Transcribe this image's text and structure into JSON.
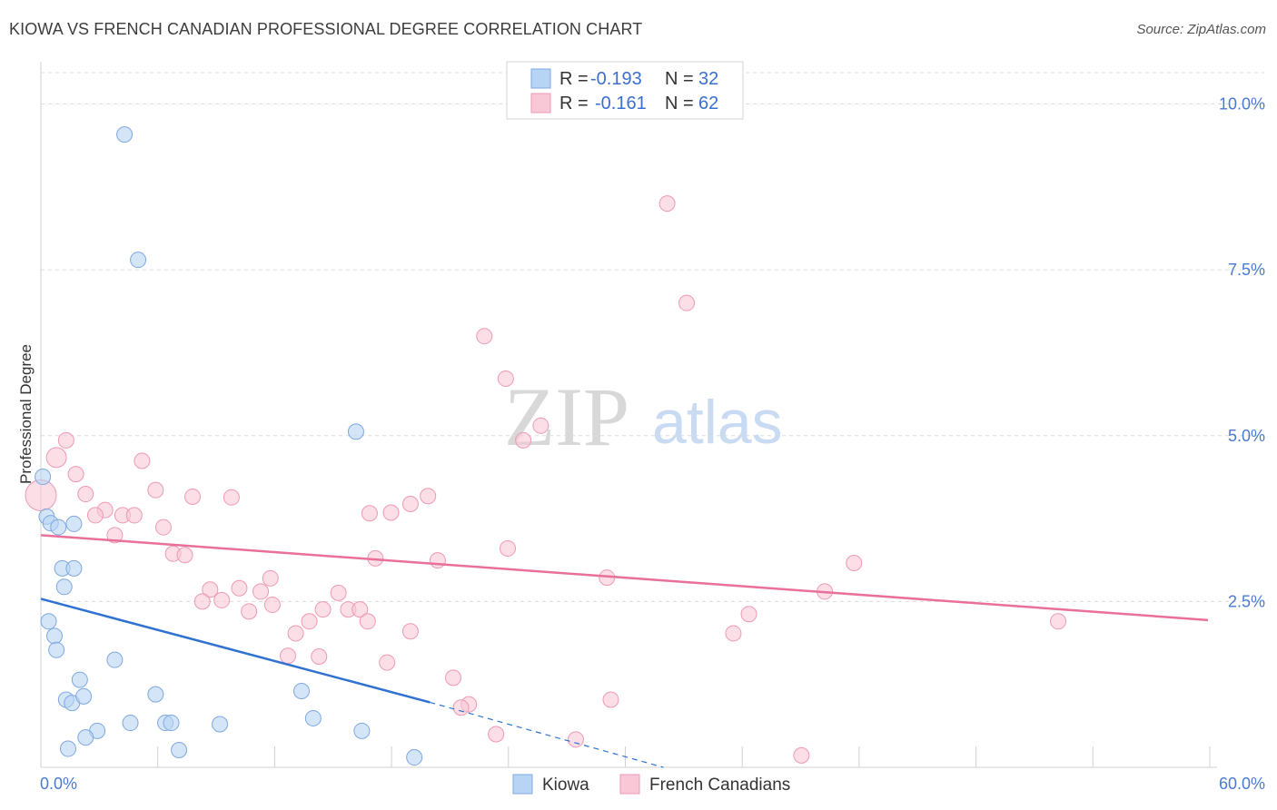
{
  "header": {
    "title": "KIOWA VS FRENCH CANADIAN PROFESSIONAL DEGREE CORRELATION CHART",
    "source": "Source: ZipAtlas.com"
  },
  "watermark": {
    "zip": "ZIP",
    "atlas": "atlas"
  },
  "colors": {
    "kiowa_fill": "#b8d4f4",
    "kiowa_stroke": "#7fa8e0",
    "kiowa_line": "#2f72d0",
    "french_fill": "#f8c8d6",
    "french_stroke": "#ee9ab4",
    "french_line": "#e8709a",
    "tick_text": "#4a7bd0",
    "grid": "#dcdcdc"
  },
  "legend": {
    "rows": [
      {
        "r_label": "R =",
        "r_value": "-0.193",
        "n_label": "N =",
        "n_value": "32"
      },
      {
        "r_label": "R =",
        "r_value": "-0.161",
        "n_label": "N =",
        "n_value": "62"
      }
    ]
  },
  "chart_data": {
    "type": "scatter",
    "title": "KIOWA VS FRENCH CANADIAN PROFESSIONAL DEGREE CORRELATION CHART",
    "xlabel": "",
    "ylabel": "Professional Degree",
    "xlim": [
      0,
      60
    ],
    "ylim": [
      0,
      10.5
    ],
    "x_tick_labels": [
      "0.0%",
      "60.0%"
    ],
    "y_ticks": [
      2.5,
      5.0,
      7.5,
      10.0
    ],
    "y_tick_labels": [
      "2.5%",
      "5.0%",
      "7.5%",
      "10.0%"
    ],
    "series": [
      {
        "name": "Kiowa",
        "r": -0.193,
        "n": 32,
        "trend": {
          "x0": 0.0,
          "y0": 2.54,
          "x1": 20.0,
          "y1": 0.98,
          "dash_x1": 32.0,
          "dash_y1": 0.0
        },
        "points": [
          [
            4.3,
            9.54
          ],
          [
            5.0,
            7.65
          ],
          [
            0.1,
            4.38
          ],
          [
            0.3,
            3.78
          ],
          [
            0.5,
            3.68
          ],
          [
            0.9,
            3.62
          ],
          [
            1.7,
            3.67
          ],
          [
            1.1,
            3.0
          ],
          [
            1.7,
            3.0
          ],
          [
            1.2,
            2.72
          ],
          [
            0.4,
            2.2
          ],
          [
            0.7,
            1.98
          ],
          [
            0.8,
            1.77
          ],
          [
            3.8,
            1.62
          ],
          [
            2.0,
            1.32
          ],
          [
            1.3,
            1.02
          ],
          [
            1.6,
            0.97
          ],
          [
            2.2,
            1.07
          ],
          [
            5.9,
            1.1
          ],
          [
            13.4,
            1.15
          ],
          [
            14.0,
            0.74
          ],
          [
            4.6,
            0.67
          ],
          [
            6.4,
            0.67
          ],
          [
            6.7,
            0.67
          ],
          [
            9.2,
            0.65
          ],
          [
            2.9,
            0.55
          ],
          [
            2.3,
            0.45
          ],
          [
            16.5,
            0.55
          ],
          [
            1.4,
            0.28
          ],
          [
            7.1,
            0.26
          ],
          [
            19.2,
            0.15
          ],
          [
            16.2,
            5.06
          ]
        ]
      },
      {
        "name": "French Canadians",
        "r": -0.161,
        "n": 62,
        "trend": {
          "x0": 0.0,
          "y0": 3.5,
          "x1": 60.0,
          "y1": 2.22
        },
        "points": [
          [
            32.2,
            8.5
          ],
          [
            33.2,
            7.0
          ],
          [
            22.8,
            6.5
          ],
          [
            23.9,
            5.86
          ],
          [
            25.7,
            5.15
          ],
          [
            24.8,
            4.93
          ],
          [
            1.3,
            4.93
          ],
          [
            0.8,
            4.67
          ],
          [
            5.2,
            4.62
          ],
          [
            1.8,
            4.42
          ],
          [
            5.9,
            4.18
          ],
          [
            2.3,
            4.12
          ],
          [
            7.8,
            4.08
          ],
          [
            9.8,
            4.07
          ],
          [
            0.0,
            4.1
          ],
          [
            19.9,
            4.09
          ],
          [
            19.0,
            3.97
          ],
          [
            3.3,
            3.88
          ],
          [
            2.8,
            3.8
          ],
          [
            4.2,
            3.8
          ],
          [
            4.8,
            3.8
          ],
          [
            18.0,
            3.84
          ],
          [
            16.9,
            3.83
          ],
          [
            6.3,
            3.62
          ],
          [
            3.8,
            3.5
          ],
          [
            6.8,
            3.22
          ],
          [
            7.4,
            3.2
          ],
          [
            17.2,
            3.15
          ],
          [
            20.4,
            3.12
          ],
          [
            24.0,
            3.3
          ],
          [
            41.8,
            3.08
          ],
          [
            11.8,
            2.85
          ],
          [
            29.1,
            2.86
          ],
          [
            8.7,
            2.68
          ],
          [
            10.2,
            2.7
          ],
          [
            11.3,
            2.65
          ],
          [
            15.3,
            2.63
          ],
          [
            40.3,
            2.65
          ],
          [
            8.3,
            2.5
          ],
          [
            9.3,
            2.52
          ],
          [
            10.7,
            2.35
          ],
          [
            11.9,
            2.45
          ],
          [
            14.5,
            2.38
          ],
          [
            15.8,
            2.38
          ],
          [
            16.4,
            2.38
          ],
          [
            36.4,
            2.31
          ],
          [
            13.8,
            2.2
          ],
          [
            16.8,
            2.2
          ],
          [
            52.3,
            2.2
          ],
          [
            13.1,
            2.02
          ],
          [
            19.0,
            2.05
          ],
          [
            35.6,
            2.02
          ],
          [
            12.7,
            1.68
          ],
          [
            14.3,
            1.67
          ],
          [
            17.8,
            1.58
          ],
          [
            21.2,
            1.35
          ],
          [
            29.3,
            1.02
          ],
          [
            22.0,
            0.95
          ],
          [
            21.6,
            0.9
          ],
          [
            23.4,
            0.5
          ],
          [
            27.5,
            0.42
          ],
          [
            39.1,
            0.18
          ]
        ]
      }
    ]
  },
  "bottom_legend": {
    "items": [
      {
        "label": "Kiowa"
      },
      {
        "label": "French Canadians"
      }
    ]
  }
}
